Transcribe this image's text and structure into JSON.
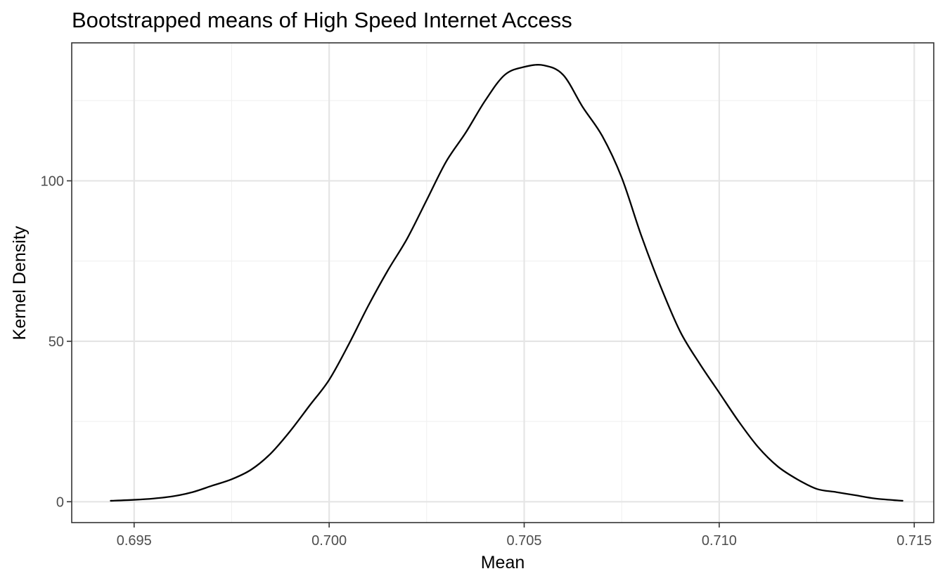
{
  "chart_data": {
    "type": "line",
    "title": "Bootstrapped means of High Speed Internet Access",
    "xlabel": "Mean",
    "ylabel": "Kernel Density",
    "xlim": [
      0.6934,
      0.7155
    ],
    "ylim": [
      -6.5,
      143
    ],
    "x_ticks": [
      0.695,
      0.7,
      0.705,
      0.71,
      0.715
    ],
    "x_tick_labels": [
      "0.695",
      "0.700",
      "0.705",
      "0.710",
      "0.715"
    ],
    "x_minor_ticks": [
      0.6975,
      0.7025,
      0.7075,
      0.7125
    ],
    "y_ticks": [
      0,
      50,
      100
    ],
    "y_tick_labels": [
      "0",
      "50",
      "100"
    ],
    "y_minor_ticks": [
      25,
      75,
      125
    ],
    "grid": true,
    "legend": "none",
    "series": [
      {
        "x": [
          0.6944,
          0.695,
          0.6955,
          0.696,
          0.6965,
          0.697,
          0.6975,
          0.698,
          0.6985,
          0.699,
          0.6995,
          0.7,
          0.7005,
          0.701,
          0.7015,
          0.702,
          0.7025,
          0.703,
          0.7035,
          0.704,
          0.7045,
          0.705,
          0.7055,
          0.706,
          0.7065,
          0.707,
          0.7075,
          0.708,
          0.7085,
          0.709,
          0.7095,
          0.71,
          0.7105,
          0.711,
          0.7115,
          0.712,
          0.7125,
          0.713,
          0.7135,
          0.714,
          0.7147
        ],
        "y": [
          0.3,
          0.6,
          1.0,
          1.7,
          3.0,
          5.0,
          7.0,
          10.0,
          15.0,
          22.0,
          30.0,
          38.0,
          49.0,
          61.0,
          72.0,
          82.0,
          94.0,
          106.0,
          115.0,
          125.0,
          133.0,
          135.5,
          136.0,
          133.0,
          123.0,
          114.0,
          101.0,
          83.0,
          67.0,
          53.0,
          43.0,
          34.0,
          25.0,
          17.0,
          11.0,
          7.0,
          4.0,
          3.0,
          2.0,
          1.0,
          0.3
        ]
      }
    ]
  }
}
